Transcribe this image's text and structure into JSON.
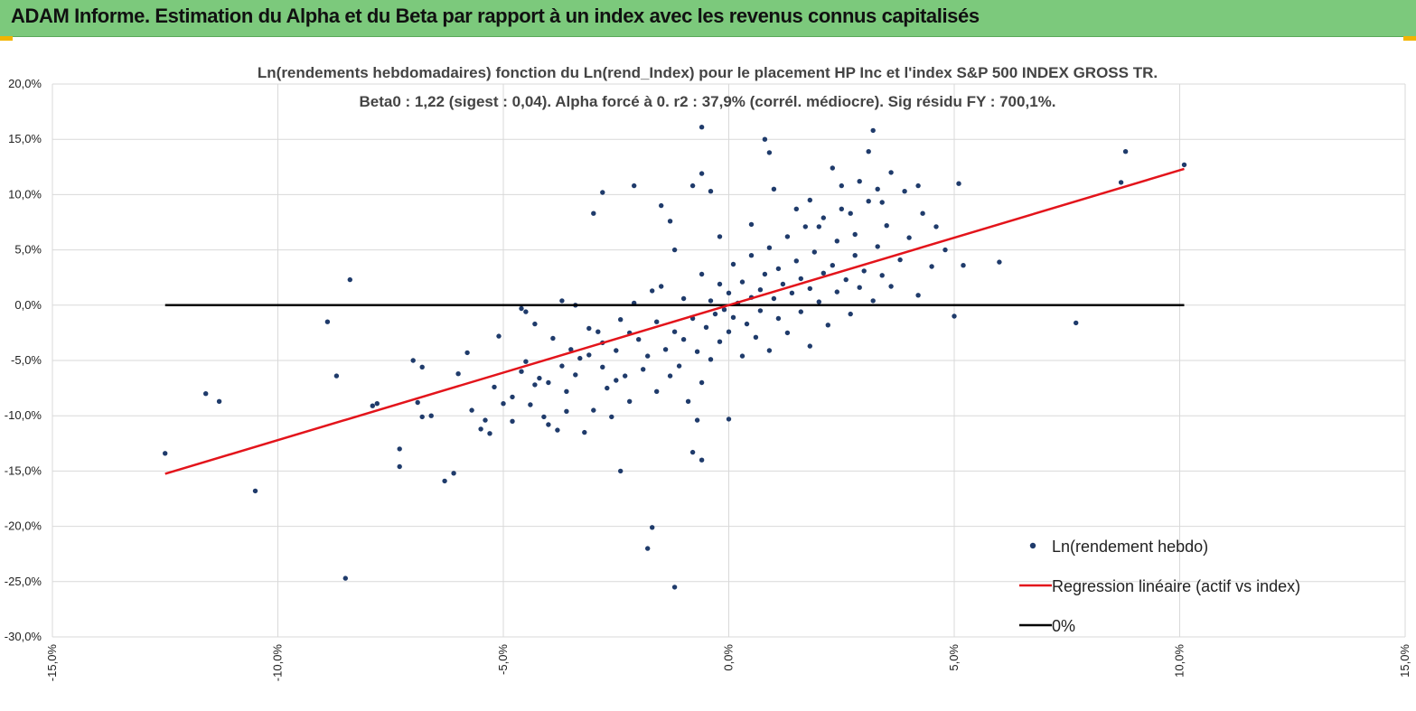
{
  "header": {
    "title": "ADAM Informe. Estimation du Alpha et du Beta par rapport à un index avec les revenus connus capitalisés"
  },
  "colors": {
    "header_bg": "#7cc97c",
    "accent_corner": "#f2b400",
    "points": "#1f3b6b",
    "regression": "#e3141b",
    "zero_line": "#000000",
    "grid": "#d9d9d9"
  },
  "chart_data": {
    "type": "scatter",
    "title": [
      "Ln(rendements hebdomadaires) fonction du Ln(rend_Index)  pour le placement HP Inc et l'index S&P 500 INDEX GROSS TR.",
      "Beta0 : 1,22  (sigest : 0,04). Alpha forcé à 0. r2 : 37,9% (corrél. médiocre). Sig résidu FY : 700,1%."
    ],
    "xlim": [
      -0.15,
      0.15
    ],
    "ylim": [
      -0.3,
      0.2
    ],
    "x_ticks": [
      {
        "v": -0.15,
        "label": "-15,0%"
      },
      {
        "v": -0.1,
        "label": "-10,0%"
      },
      {
        "v": -0.05,
        "label": "-5,0%"
      },
      {
        "v": 0.0,
        "label": "0,0%"
      },
      {
        "v": 0.05,
        "label": "5,0%"
      },
      {
        "v": 0.1,
        "label": "10,0%"
      },
      {
        "v": 0.15,
        "label": "15,0%"
      }
    ],
    "y_ticks": [
      {
        "v": 0.2,
        "label": "20,0%"
      },
      {
        "v": 0.15,
        "label": "15,0%"
      },
      {
        "v": 0.1,
        "label": "10,0%"
      },
      {
        "v": 0.05,
        "label": "5,0%"
      },
      {
        "v": 0.0,
        "label": "0,0%"
      },
      {
        "v": -0.05,
        "label": "-5,0%"
      },
      {
        "v": -0.1,
        "label": "-10,0%"
      },
      {
        "v": -0.15,
        "label": "-15,0%"
      },
      {
        "v": -0.2,
        "label": "-20,0%"
      },
      {
        "v": -0.25,
        "label": "-25,0%"
      },
      {
        "v": -0.3,
        "label": "-30,0%"
      }
    ],
    "series": [
      {
        "name": "Ln(rendement hebdo)",
        "type": "scatter",
        "points": [
          [
            -0.125,
            -0.134
          ],
          [
            -0.116,
            -0.08
          ],
          [
            -0.113,
            -0.087
          ],
          [
            -0.105,
            -0.168
          ],
          [
            -0.089,
            -0.015
          ],
          [
            -0.087,
            -0.064
          ],
          [
            -0.085,
            -0.247
          ],
          [
            -0.084,
            0.023
          ],
          [
            -0.079,
            -0.091
          ],
          [
            -0.078,
            -0.089
          ],
          [
            -0.073,
            -0.146
          ],
          [
            -0.073,
            -0.13
          ],
          [
            -0.07,
            -0.05
          ],
          [
            -0.069,
            -0.088
          ],
          [
            -0.068,
            -0.056
          ],
          [
            -0.068,
            -0.101
          ],
          [
            -0.066,
            -0.1
          ],
          [
            -0.063,
            -0.159
          ],
          [
            -0.061,
            -0.152
          ],
          [
            -0.06,
            -0.062
          ],
          [
            -0.058,
            -0.043
          ],
          [
            -0.057,
            -0.095
          ],
          [
            -0.055,
            -0.112
          ],
          [
            -0.054,
            -0.104
          ],
          [
            -0.053,
            -0.116
          ],
          [
            -0.052,
            -0.074
          ],
          [
            -0.051,
            -0.028
          ],
          [
            -0.05,
            -0.089
          ],
          [
            -0.048,
            -0.083
          ],
          [
            -0.048,
            -0.105
          ],
          [
            -0.046,
            -0.06
          ],
          [
            -0.045,
            -0.051
          ],
          [
            -0.044,
            -0.09
          ],
          [
            -0.043,
            -0.072
          ],
          [
            -0.042,
            -0.066
          ],
          [
            -0.041,
            -0.101
          ],
          [
            -0.04,
            -0.108
          ],
          [
            -0.04,
            -0.07
          ],
          [
            -0.039,
            -0.03
          ],
          [
            -0.038,
            -0.113
          ],
          [
            -0.037,
            -0.055
          ],
          [
            -0.036,
            -0.078
          ],
          [
            -0.036,
            -0.096
          ],
          [
            -0.035,
            -0.04
          ],
          [
            -0.034,
            -0.063
          ],
          [
            -0.033,
            -0.048
          ],
          [
            -0.032,
            -0.115
          ],
          [
            -0.031,
            -0.021
          ],
          [
            -0.03,
            -0.095
          ],
          [
            -0.029,
            -0.024
          ],
          [
            -0.028,
            -0.056
          ],
          [
            -0.028,
            -0.034
          ],
          [
            -0.027,
            -0.075
          ],
          [
            -0.026,
            -0.101
          ],
          [
            -0.025,
            -0.041
          ],
          [
            -0.024,
            -0.15
          ],
          [
            -0.024,
            -0.013
          ],
          [
            -0.023,
            -0.064
          ],
          [
            -0.022,
            -0.025
          ],
          [
            -0.022,
            -0.087
          ],
          [
            -0.021,
            0.002
          ],
          [
            -0.02,
            -0.031
          ],
          [
            -0.019,
            -0.058
          ],
          [
            -0.018,
            -0.046
          ],
          [
            -0.017,
            0.013
          ],
          [
            -0.016,
            -0.015
          ],
          [
            -0.016,
            -0.078
          ],
          [
            -0.015,
            0.017
          ],
          [
            -0.014,
            -0.04
          ],
          [
            -0.013,
            -0.064
          ],
          [
            -0.012,
            -0.024
          ],
          [
            -0.011,
            -0.055
          ],
          [
            -0.01,
            0.006
          ],
          [
            -0.01,
            -0.031
          ],
          [
            -0.009,
            -0.087
          ],
          [
            -0.008,
            -0.012
          ],
          [
            -0.007,
            -0.042
          ],
          [
            -0.006,
            0.028
          ],
          [
            -0.006,
            -0.07
          ],
          [
            -0.005,
            -0.02
          ],
          [
            -0.004,
            0.004
          ],
          [
            -0.004,
            -0.049
          ],
          [
            -0.003,
            -0.008
          ],
          [
            -0.002,
            0.019
          ],
          [
            -0.002,
            -0.033
          ],
          [
            -0.001,
            -0.004
          ],
          [
            0.0,
            0.011
          ],
          [
            0.0,
            -0.024
          ],
          [
            0.001,
            0.037
          ],
          [
            0.001,
            -0.011
          ],
          [
            0.002,
            0.002
          ],
          [
            0.003,
            -0.046
          ],
          [
            0.003,
            0.021
          ],
          [
            0.004,
            -0.017
          ],
          [
            0.005,
            0.007
          ],
          [
            0.005,
            0.045
          ],
          [
            0.006,
            -0.029
          ],
          [
            0.007,
            0.014
          ],
          [
            0.007,
            -0.005
          ],
          [
            0.008,
            0.028
          ],
          [
            0.009,
            -0.041
          ],
          [
            0.009,
            0.052
          ],
          [
            0.01,
            0.006
          ],
          [
            0.011,
            0.033
          ],
          [
            0.011,
            -0.012
          ],
          [
            0.012,
            0.019
          ],
          [
            0.013,
            0.062
          ],
          [
            0.013,
            -0.025
          ],
          [
            0.014,
            0.011
          ],
          [
            0.015,
            0.04
          ],
          [
            0.016,
            -0.006
          ],
          [
            0.016,
            0.024
          ],
          [
            0.017,
            0.071
          ],
          [
            0.018,
            -0.037
          ],
          [
            0.018,
            0.015
          ],
          [
            0.019,
            0.048
          ],
          [
            0.02,
            0.003
          ],
          [
            0.021,
            0.029
          ],
          [
            0.021,
            0.079
          ],
          [
            0.022,
            -0.018
          ],
          [
            0.023,
            0.036
          ],
          [
            0.024,
            0.058
          ],
          [
            0.024,
            0.012
          ],
          [
            0.025,
            0.087
          ],
          [
            0.026,
            0.023
          ],
          [
            0.027,
            -0.008
          ],
          [
            0.028,
            0.045
          ],
          [
            0.028,
            0.064
          ],
          [
            0.029,
            0.016
          ],
          [
            0.03,
            0.031
          ],
          [
            0.031,
            0.094
          ],
          [
            0.032,
            0.004
          ],
          [
            0.033,
            0.053
          ],
          [
            0.034,
            0.027
          ],
          [
            0.035,
            0.072
          ],
          [
            0.036,
            0.017
          ],
          [
            0.038,
            0.041
          ],
          [
            0.04,
            0.061
          ],
          [
            0.042,
            0.009
          ],
          [
            0.045,
            0.035
          ],
          [
            0.048,
            0.05
          ],
          [
            0.05,
            -0.01
          ],
          [
            0.052,
            0.036
          ],
          [
            -0.03,
            0.083
          ],
          [
            -0.028,
            0.102
          ],
          [
            -0.021,
            0.108
          ],
          [
            -0.015,
            0.09
          ],
          [
            -0.013,
            0.076
          ],
          [
            -0.012,
            0.05
          ],
          [
            -0.008,
            0.108
          ],
          [
            -0.006,
            0.119
          ],
          [
            -0.006,
            0.161
          ],
          [
            -0.004,
            0.103
          ],
          [
            -0.002,
            0.062
          ],
          [
            0.005,
            0.073
          ],
          [
            0.008,
            0.15
          ],
          [
            0.009,
            0.138
          ],
          [
            0.01,
            0.105
          ],
          [
            0.015,
            0.087
          ],
          [
            0.018,
            0.095
          ],
          [
            0.02,
            0.071
          ],
          [
            0.023,
            0.124
          ],
          [
            0.025,
            0.108
          ],
          [
            0.027,
            0.083
          ],
          [
            0.029,
            0.112
          ],
          [
            0.031,
            0.139
          ],
          [
            0.032,
            0.158
          ],
          [
            0.033,
            0.105
          ],
          [
            0.034,
            0.093
          ],
          [
            0.036,
            0.12
          ],
          [
            0.039,
            0.103
          ],
          [
            0.042,
            0.108
          ],
          [
            0.043,
            0.083
          ],
          [
            0.046,
            0.071
          ],
          [
            0.051,
            0.11
          ],
          [
            0.06,
            0.039
          ],
          [
            0.077,
            -0.016
          ],
          [
            0.087,
            0.111
          ],
          [
            0.088,
            0.139
          ],
          [
            0.101,
            0.127
          ],
          [
            -0.018,
            -0.22
          ],
          [
            -0.017,
            -0.201
          ],
          [
            -0.012,
            -0.255
          ],
          [
            -0.008,
            -0.133
          ],
          [
            -0.007,
            -0.104
          ],
          [
            -0.006,
            -0.14
          ],
          [
            0.0,
            -0.103
          ],
          [
            -0.031,
            -0.045
          ],
          [
            -0.025,
            -0.068
          ],
          [
            -0.043,
            -0.017
          ],
          [
            -0.046,
            -0.003
          ],
          [
            -0.045,
            -0.006
          ],
          [
            -0.037,
            0.004
          ],
          [
            -0.034,
            0.0
          ]
        ]
      },
      {
        "name": "Regression linéaire (actif vs index)",
        "type": "line",
        "beta": 1.22,
        "alpha": 0,
        "x_range": [
          -0.125,
          0.101
        ]
      },
      {
        "name": "0%",
        "type": "line",
        "y": 0,
        "x_range": [
          -0.125,
          0.101
        ]
      }
    ],
    "legend_position": "bottom-right"
  }
}
